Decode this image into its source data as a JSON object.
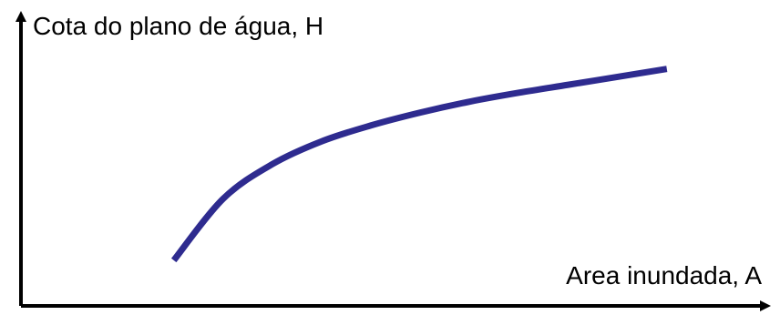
{
  "chart_data": {
    "type": "line",
    "title": "",
    "ylabel": "Cota do plano de água, H",
    "xlabel": "Area inundada, A",
    "grid": false,
    "legend": "none",
    "series": [
      {
        "x": [
          0,
          1,
          2,
          3,
          4,
          5,
          6,
          7,
          8,
          9,
          10
        ],
        "y": [
          0,
          3.1,
          4.85,
          6.0,
          6.8,
          7.45,
          8.0,
          8.45,
          8.85,
          9.25,
          9.65
        ]
      }
    ],
    "xlim": [
      -3.1,
      12.0
    ],
    "ylim": [
      -2.3,
      12.3
    ],
    "colors": {
      "curve": "#2e2b8f",
      "axes": "#000000"
    }
  }
}
